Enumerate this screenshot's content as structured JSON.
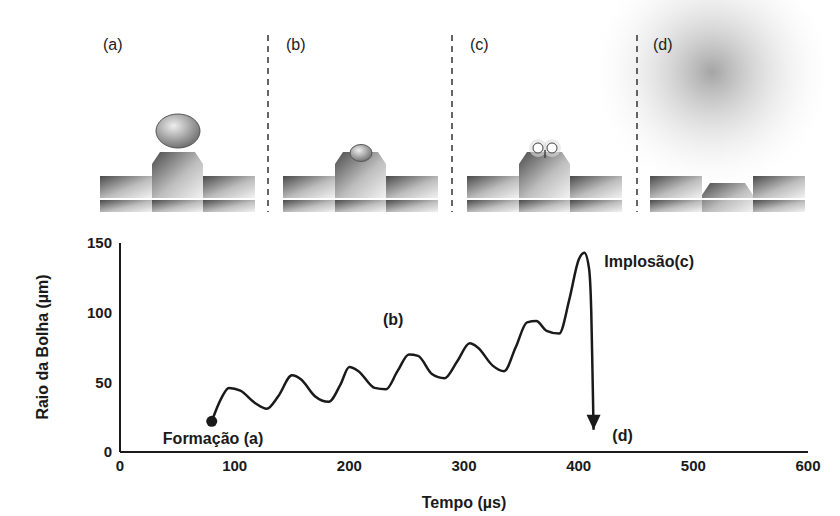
{
  "chart_data": {
    "type": "line",
    "xlabel": "Tempo (µs)",
    "ylabel": "Raio da Bolha (µm)",
    "x": [
      80,
      88,
      95,
      105,
      118,
      128,
      138,
      150,
      158,
      170,
      182,
      192,
      200,
      208,
      222,
      232,
      242,
      252,
      260,
      272,
      283,
      294,
      305,
      312,
      325,
      335,
      345,
      355,
      363,
      372,
      383,
      392,
      400,
      405,
      409,
      411,
      412,
      413
    ],
    "values": [
      22,
      38,
      46,
      44,
      35,
      31,
      40,
      55,
      52,
      40,
      36,
      48,
      61,
      58,
      46,
      45,
      58,
      70,
      69,
      56,
      53,
      65,
      78,
      75,
      62,
      58,
      75,
      93,
      94,
      87,
      85,
      110,
      138,
      143,
      132,
      100,
      60,
      16
    ],
    "color": "#1a1a1a",
    "marker": "circle",
    "xlim": [
      0,
      600
    ],
    "xticks": [
      0,
      100,
      200,
      300,
      400,
      500,
      600
    ],
    "ylim": [
      0,
      150
    ],
    "yticks": [
      0,
      50,
      100,
      150
    ],
    "grid": false,
    "annotations": [
      {
        "text": "Formação (a)",
        "x": 33,
        "y": 10
      },
      {
        "text": "(b)",
        "x": 225,
        "y": 95
      },
      {
        "text": "Implosão(c)",
        "x": 418,
        "y": 137
      },
      {
        "text": "(d)",
        "x": 425,
        "y": 12
      }
    ]
  },
  "panels": [
    "(a)",
    "(b)",
    "(c)",
    "(d)"
  ]
}
